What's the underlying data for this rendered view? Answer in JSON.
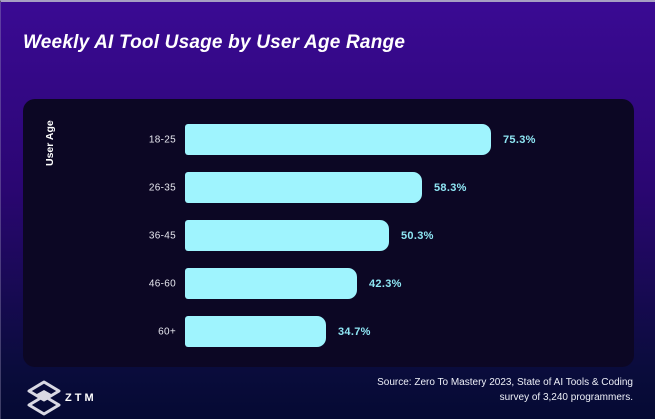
{
  "header": {
    "title": "Weekly AI Tool Usage by User Age Range"
  },
  "chart_data": {
    "type": "bar",
    "orientation": "horizontal",
    "title": "Weekly AI Tool Usage by User Age Range",
    "ylabel": "User Age",
    "xlabel": "",
    "categories": [
      "18-25",
      "26-35",
      "36-45",
      "46-60",
      "60+"
    ],
    "values": [
      75.3,
      58.3,
      50.3,
      42.3,
      34.7
    ],
    "value_labels": [
      "75.3%",
      "58.3%",
      "50.3%",
      "42.3%",
      "34.7%"
    ],
    "grid": false,
    "legend": null,
    "bar_color": "#9ff4fe",
    "value_label_color": "#8fe6f4",
    "panel_color": "#0c0724"
  },
  "colors": {
    "background_top": "#3a0a93",
    "background_bottom": "#050a33",
    "title_text": "#ffffff"
  },
  "footer": {
    "logo_text": "ZTM",
    "source_line1": "Source: Zero To Mastery 2023, State of AI Tools & Coding",
    "source_line2": "survey of 3,240 programmers."
  }
}
